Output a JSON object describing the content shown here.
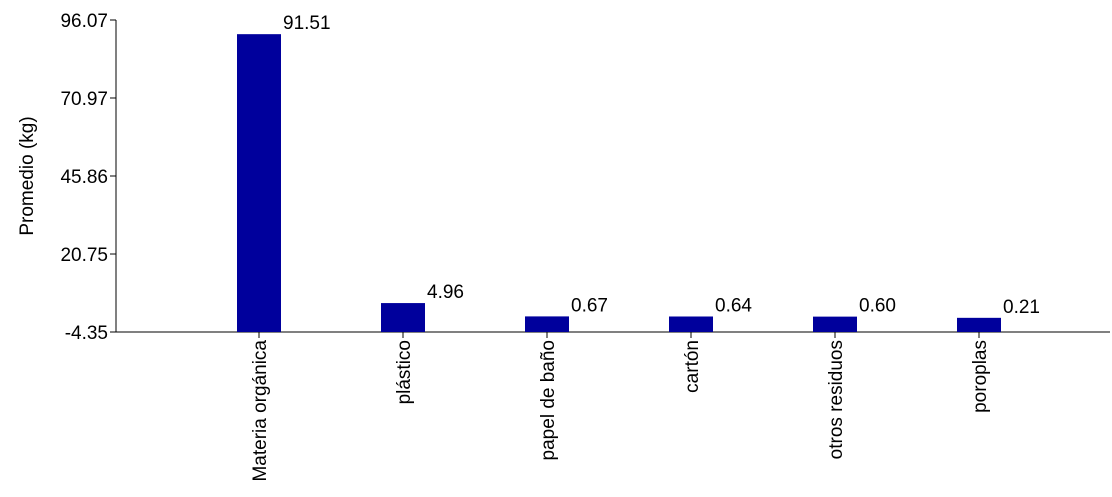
{
  "chart_data": {
    "type": "bar",
    "categories": [
      "Materia orgánica",
      "plástico",
      "papel de baño",
      "cartón",
      "otros residuos",
      "poroplas"
    ],
    "values": [
      91.51,
      4.96,
      0.67,
      0.64,
      0.6,
      0.21
    ],
    "value_labels": [
      "91.51",
      "4.96",
      "0.67",
      "0.64",
      "0.60",
      "0.21"
    ],
    "ylabel": "Promedio (kg)",
    "ylim": [
      -4.35,
      96.07
    ],
    "yticks": [
      "96.07",
      "70.97",
      "45.86",
      "20.75",
      "-4.35"
    ],
    "bar_color": "#00009c",
    "grid": false
  }
}
